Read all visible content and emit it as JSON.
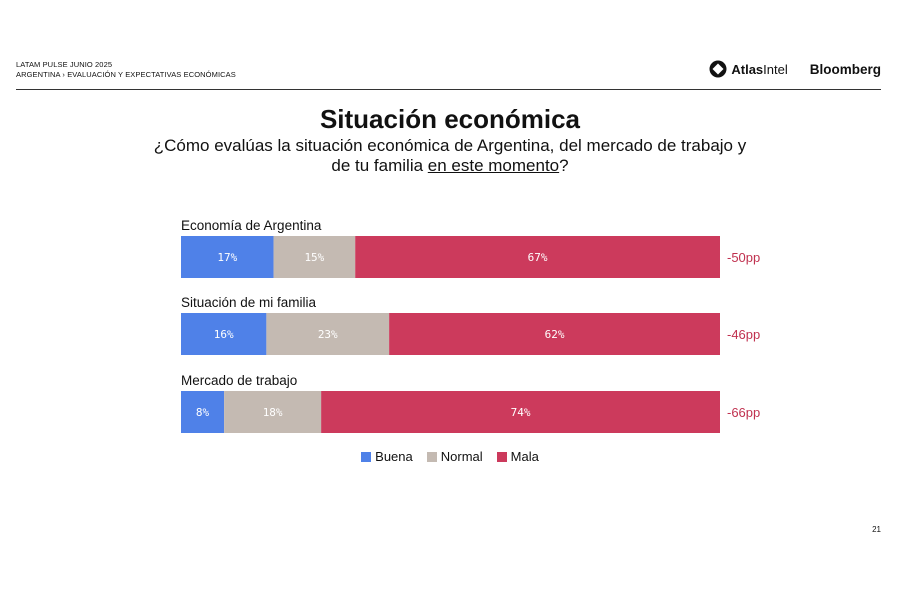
{
  "header": {
    "line1": "LATAM PULSE JUNIO 2025",
    "line2": "ARGENTINA › EVALUACIÓN Y EXPECTATIVAS ECONÓMICAS",
    "atlas_bold": "Atlas",
    "atlas_light": "Intel",
    "bloomberg": "Bloomberg"
  },
  "title": "Situación económica",
  "subtitle_a": "¿Cómo evalúas la situación económica de Argentina, del mercado de trabajo y de tu familia ",
  "subtitle_u": "en este momento",
  "subtitle_b": "?",
  "page_number": "21",
  "chart_data": {
    "type": "bar",
    "stacked": true,
    "orientation": "horizontal",
    "categories": [
      "Economía de Argentina",
      "Situación de mi familia",
      "Mercado de trabajo"
    ],
    "series": [
      {
        "name": "Buena",
        "color": "#4f81e8",
        "values": [
          17,
          16,
          8
        ]
      },
      {
        "name": "Normal",
        "color": "#c4bab2",
        "values": [
          15,
          23,
          18
        ]
      },
      {
        "name": "Mala",
        "color": "#cc3a5c",
        "values": [
          67,
          62,
          74
        ]
      }
    ],
    "value_labels": [
      [
        "17%",
        "15%",
        "67%"
      ],
      [
        "16%",
        "23%",
        "62%"
      ],
      [
        "8%",
        "18%",
        "74%"
      ]
    ],
    "net_labels": [
      "-50pp",
      "-46pp",
      "-66pp"
    ],
    "net_color": "#c0314f",
    "legend": "bottom"
  }
}
